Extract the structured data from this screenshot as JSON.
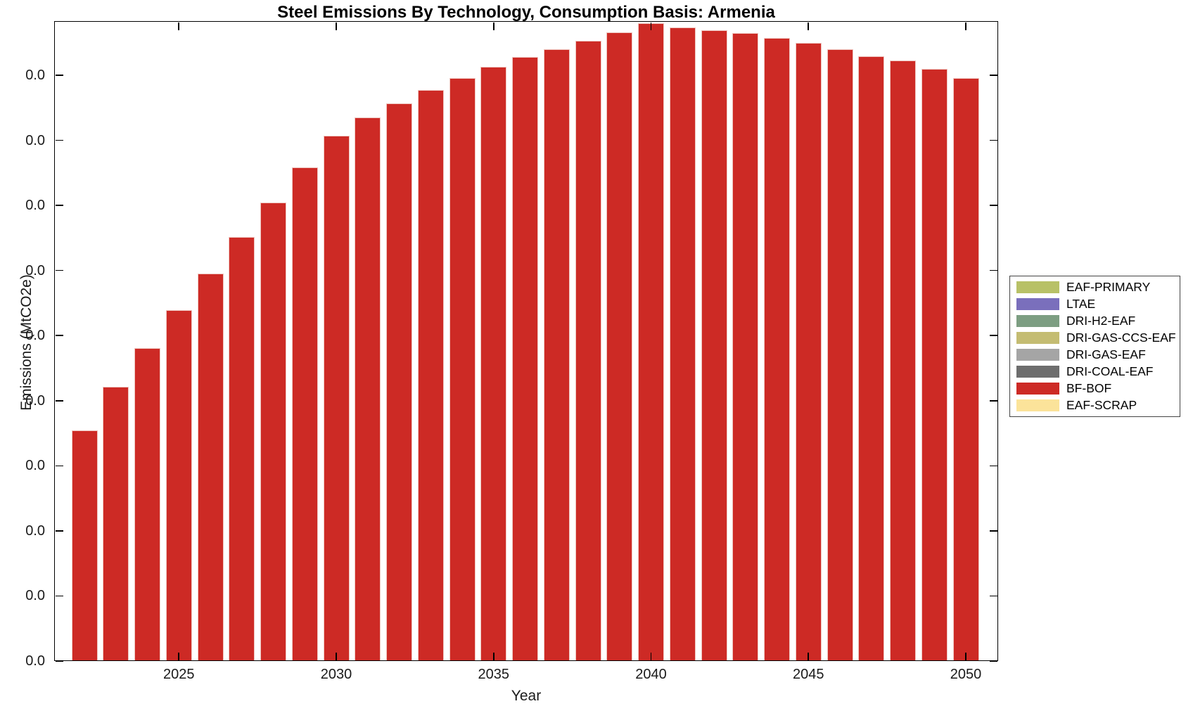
{
  "figure": {
    "title": "Steel Emissions By Technology, Consumption Basis: Armenia",
    "x_axis_label": "Year",
    "y_axis_label": "Emissions (MtCO2e)"
  },
  "legend": {
    "entries": [
      {
        "label": "EAF-PRIMARY",
        "color": "#b8c167"
      },
      {
        "label": "LTAE",
        "color": "#7a6fbc"
      },
      {
        "label": "DRI-H2-EAF",
        "color": "#7d9e82"
      },
      {
        "label": "DRI-GAS-CCS-EAF",
        "color": "#c4bc72"
      },
      {
        "label": "DRI-GAS-EAF",
        "color": "#a5a5a5"
      },
      {
        "label": "DRI-COAL-EAF",
        "color": "#6d6d6d"
      },
      {
        "label": "BF-BOF",
        "color": "#cd2a25"
      },
      {
        "label": "EAF-SCRAP",
        "color": "#fbe39a"
      }
    ]
  },
  "chart_data": {
    "type": "bar",
    "title": "Steel Emissions By Technology, Consumption Basis: Armenia",
    "xlabel": "Year",
    "ylabel": "Emissions (MtCO2e)",
    "x": [
      2022,
      2023,
      2024,
      2025,
      2026,
      2027,
      2028,
      2029,
      2030,
      2031,
      2032,
      2033,
      2034,
      2035,
      2036,
      2037,
      2038,
      2039,
      2040,
      2041,
      2042,
      2043,
      2044,
      2045,
      2046,
      2047,
      2048,
      2049,
      2050
    ],
    "series": [
      {
        "name": "BF-BOF",
        "color": "#cd2a25",
        "values_in_y_tick_units": [
          3.54,
          4.21,
          4.81,
          5.39,
          5.95,
          6.51,
          7.04,
          7.58,
          8.07,
          8.35,
          8.57,
          8.77,
          8.96,
          9.13,
          9.28,
          9.4,
          9.53,
          9.66,
          9.8,
          9.73,
          9.69,
          9.65,
          9.57,
          9.5,
          9.4,
          9.29,
          9.23,
          9.1,
          8.96
        ]
      }
    ],
    "zero_height_series": [
      "EAF-PRIMARY",
      "LTAE",
      "DRI-H2-EAF",
      "DRI-GAS-CCS-EAF",
      "DRI-GAS-EAF",
      "DRI-COAL-EAF",
      "EAF-SCRAP"
    ],
    "x_tick_years": [
      2025,
      2030,
      2035,
      2040,
      2045,
      2050
    ],
    "x_tick_labels": [
      "2025",
      "2030",
      "2035",
      "2040",
      "2045",
      "2050"
    ],
    "y_tick_labels": [
      "0.0",
      "0.0",
      "0.0",
      "0.0",
      "0.0",
      "0.0",
      "0.0",
      "0.0",
      "0.0",
      "0.0"
    ],
    "legend_position": "right-outside",
    "grid": false,
    "note": "All visible y-axis tick labels read 0.0; bar heights are expressed in units of one y-tick interval, single visible series BF-BOF."
  }
}
